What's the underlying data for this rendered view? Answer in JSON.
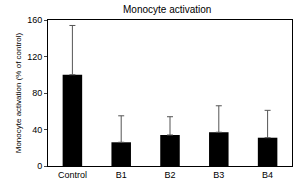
{
  "chart_data": {
    "type": "bar",
    "title": "Monocyte activation",
    "y_label": "Monocyte activation (% of control)",
    "categories": [
      "Control",
      "B1",
      "B2",
      "B3",
      "B4"
    ],
    "values": [
      100,
      26,
      34,
      37,
      31
    ],
    "errors": [
      54,
      29,
      20,
      29,
      30
    ],
    "color": "#000000",
    "ylim": [
      0,
      160
    ],
    "yticks": [
      0,
      40,
      80,
      120,
      160
    ],
    "grid": false
  }
}
